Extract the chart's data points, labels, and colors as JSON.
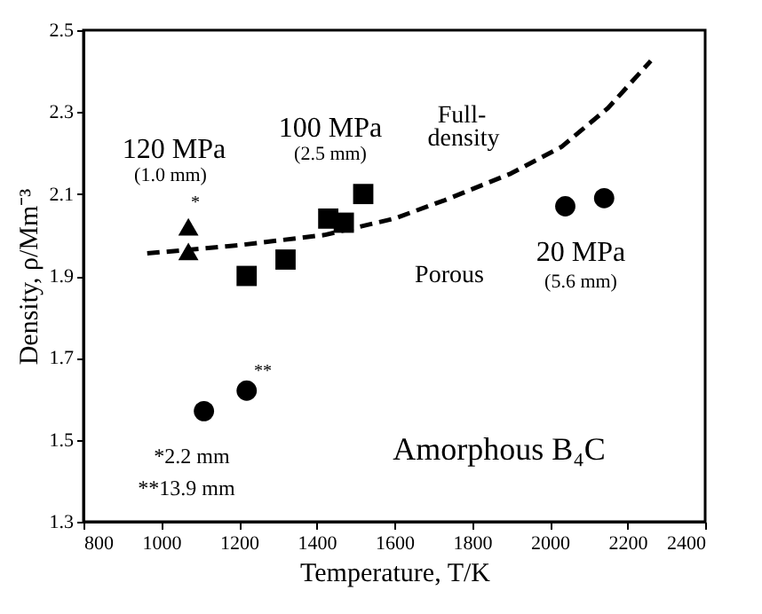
{
  "chart_data": {
    "type": "scatter",
    "xlabel": "Temperature, T/K",
    "ylabel": "Density, ρ/Mm⁻³",
    "xlim": [
      800,
      2400
    ],
    "xticks": [
      800,
      1000,
      1200,
      1400,
      1600,
      1800,
      2000,
      2200,
      2400
    ],
    "ylim": [
      1.3,
      2.5
    ],
    "yticks": [
      1.3,
      1.5,
      1.7,
      1.9,
      2.1,
      2.3,
      2.5
    ],
    "series": [
      {
        "marker": "triangle",
        "color": "#000000",
        "x": [
          1070,
          1070
        ],
        "values": [
          2.02,
          1.96
        ]
      },
      {
        "marker": "square",
        "color": "#000000",
        "x": [
          1220,
          1320,
          1430,
          1470,
          1520
        ],
        "values": [
          1.9,
          1.94,
          2.04,
          2.03,
          2.1
        ]
      },
      {
        "marker": "circle",
        "color": "#000000",
        "x": [
          2040,
          2140,
          1110,
          1220
        ],
        "values": [
          2.07,
          2.09,
          1.57,
          1.62
        ]
      },
      {
        "type": "line",
        "line_style": "dashed",
        "marker": "none",
        "color": "#000000",
        "x": [
          964,
          1200,
          1420,
          1600,
          1730,
          1900,
          2030,
          2150,
          2260
        ],
        "values": [
          1.955,
          1.975,
          2.0,
          2.04,
          2.085,
          2.15,
          2.215,
          2.31,
          2.425
        ]
      }
    ],
    "annotations": [
      "120 MPa",
      "(1.0 mm)",
      "*",
      "100 MPa",
      "(2.5 mm)",
      "Full-",
      "density",
      "Porous",
      "20 MPa",
      "(5.6 mm)",
      "**",
      "*2.2 mm",
      "**13.9 mm",
      "Amorphous B₄C"
    ]
  }
}
